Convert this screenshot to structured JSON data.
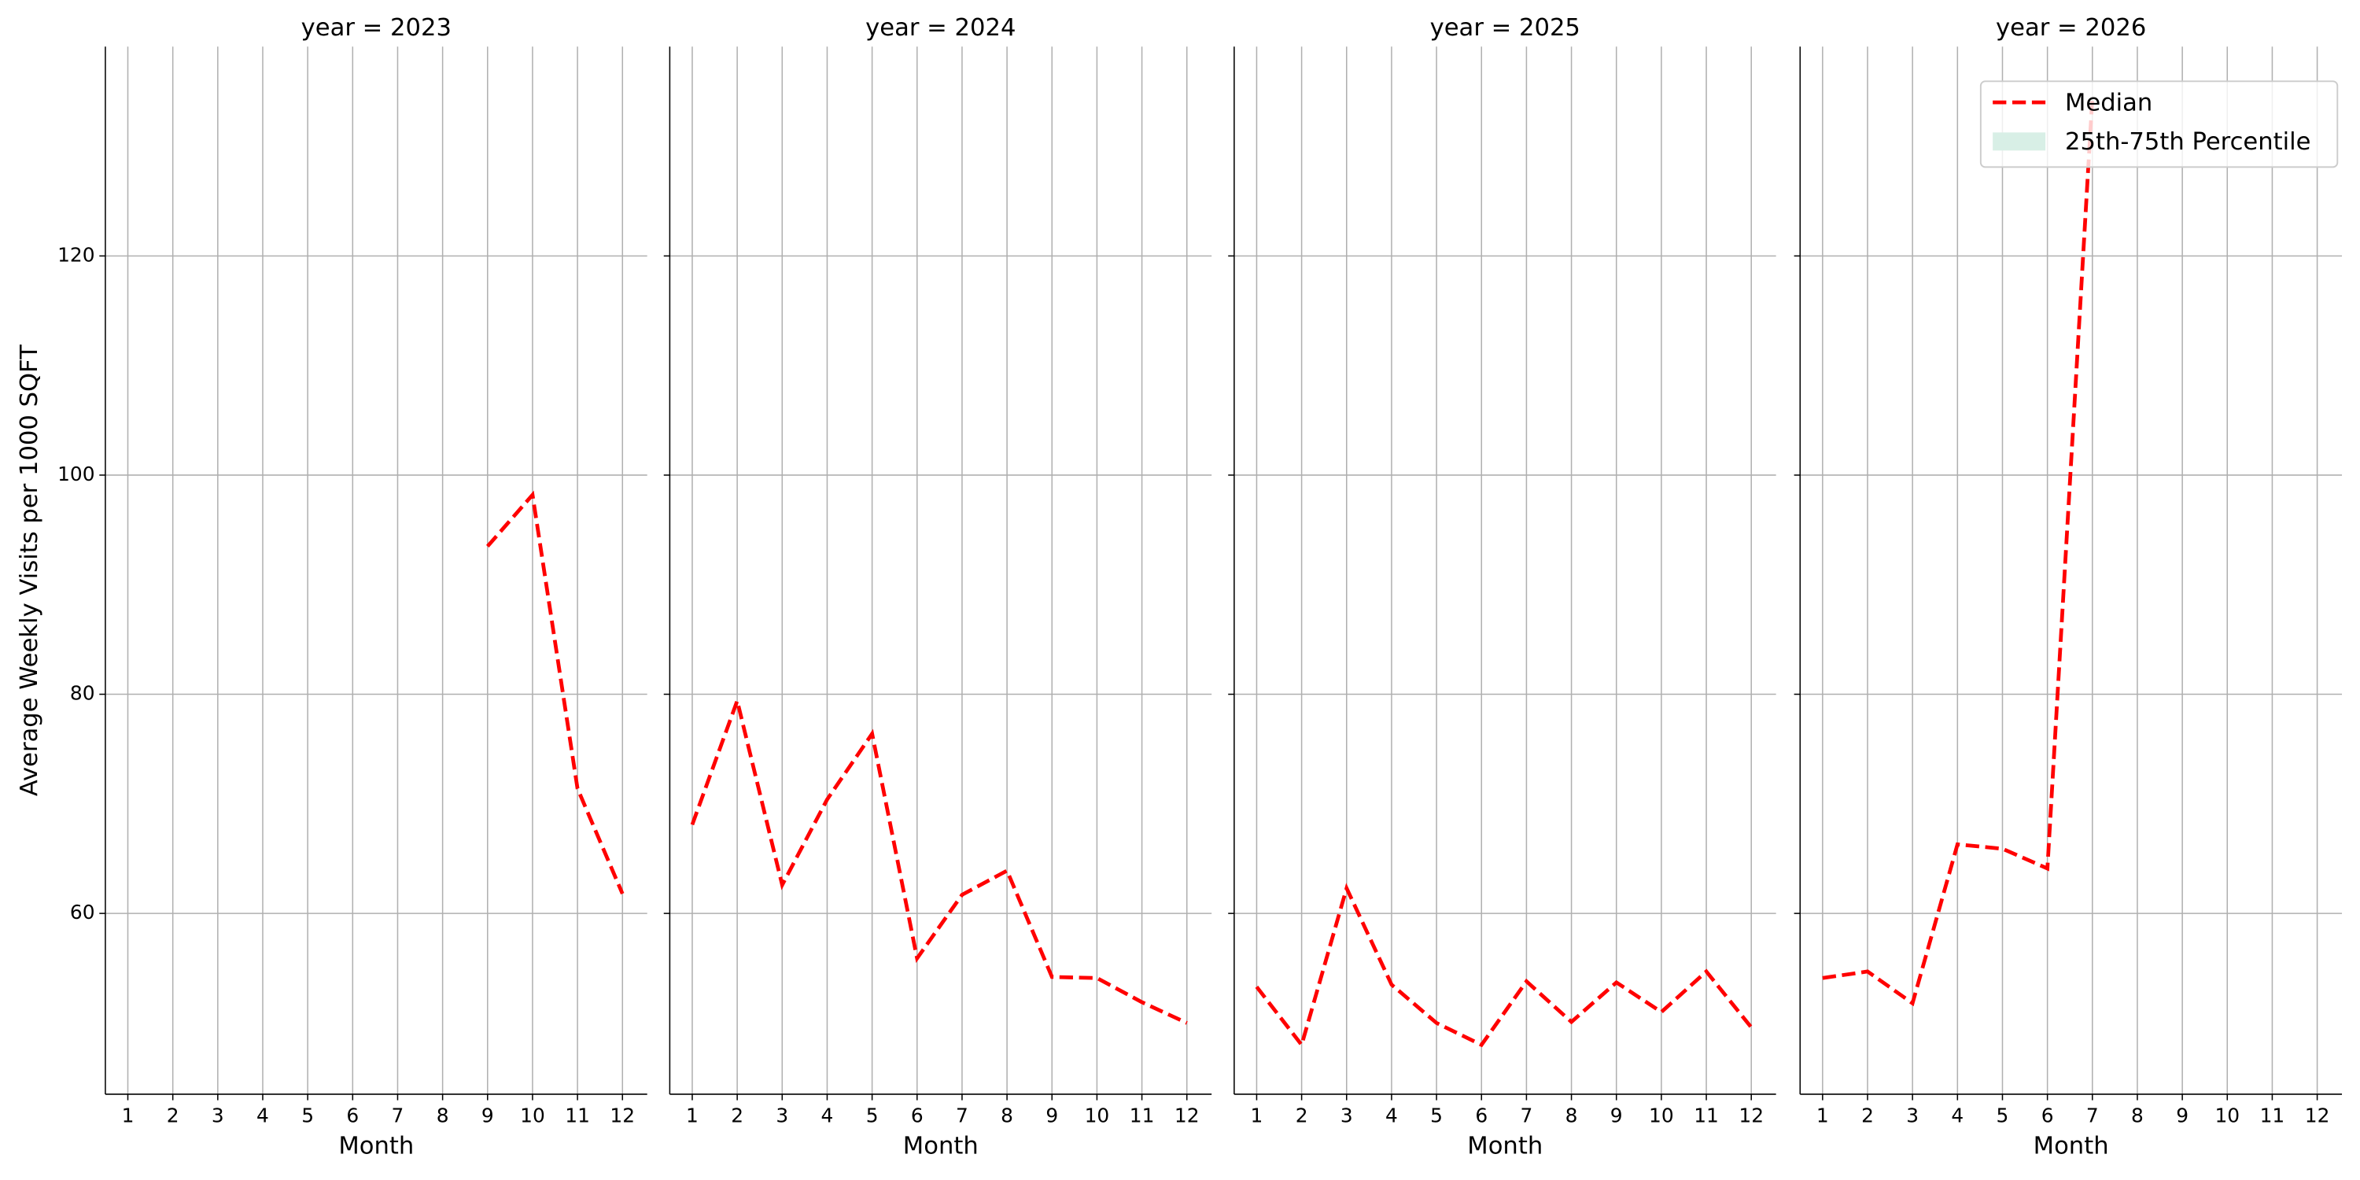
{
  "chart_data": [
    {
      "type": "line",
      "title": "year = 2023",
      "x_label": "Month",
      "y_label": "Average Weekly Visits per 1000 SQFT",
      "x": [
        1,
        2,
        3,
        4,
        5,
        6,
        7,
        8,
        9,
        10,
        11,
        12
      ],
      "series": [
        {
          "color": "#ff0000",
          "values": [
            null,
            null,
            null,
            null,
            null,
            null,
            null,
            null,
            93.5,
            98.2,
            71.4,
            61.8
          ]
        }
      ],
      "xlim": [
        0.5,
        12.55
      ],
      "xticks": [
        1,
        2,
        3,
        4,
        5,
        6,
        7,
        8,
        9,
        10,
        11,
        12
      ],
      "ylim": [
        43.5,
        139.1
      ],
      "yticks": [
        60,
        80,
        100,
        120
      ],
      "grid": true
    },
    {
      "type": "line",
      "title": "year = 2024",
      "x_label": "Month",
      "x": [
        1,
        2,
        3,
        4,
        5,
        6,
        7,
        8,
        9,
        10,
        11,
        12
      ],
      "series": [
        {
          "color": "#ff0000",
          "values": [
            68.1,
            79.4,
            62.6,
            70.4,
            76.4,
            55.9,
            61.7,
            63.9,
            54.2,
            54.1,
            51.9,
            50.0
          ]
        }
      ],
      "xlim": [
        0.5,
        12.55
      ],
      "xticks": [
        1,
        2,
        3,
        4,
        5,
        6,
        7,
        8,
        9,
        10,
        11,
        12
      ],
      "ylim": [
        43.5,
        139.1
      ],
      "yticks": [
        60,
        80,
        100,
        120
      ],
      "grid": true
    },
    {
      "type": "line",
      "title": "year = 2025",
      "x_label": "Month",
      "x": [
        1,
        2,
        3,
        4,
        5,
        6,
        7,
        8,
        9,
        10,
        11,
        12
      ],
      "series": [
        {
          "color": "#ff0000",
          "values": [
            53.3,
            48.0,
            62.3,
            53.5,
            50.0,
            48.0,
            53.8,
            50.1,
            53.7,
            51.0,
            54.7,
            49.6
          ]
        }
      ],
      "xlim": [
        0.5,
        12.55
      ],
      "xticks": [
        1,
        2,
        3,
        4,
        5,
        6,
        7,
        8,
        9,
        10,
        11,
        12
      ],
      "ylim": [
        43.5,
        139.1
      ],
      "yticks": [
        60,
        80,
        100,
        120
      ],
      "grid": true
    },
    {
      "type": "line",
      "title": "year = 2026",
      "x_label": "Month",
      "x": [
        1,
        2,
        3,
        4,
        5,
        6,
        7,
        8,
        9,
        10,
        11,
        12
      ],
      "series": [
        {
          "name": "Median",
          "color": "#ff0000",
          "values": [
            54.1,
            54.7,
            51.8,
            66.3,
            65.9,
            64.1,
            134.5,
            null,
            null,
            null,
            null,
            null
          ]
        }
      ],
      "band": {
        "name": "25th-75th Percentile",
        "color": "#d8efe6"
      },
      "legend": "upper right",
      "xlim": [
        0.5,
        12.55
      ],
      "xticks": [
        1,
        2,
        3,
        4,
        5,
        6,
        7,
        8,
        9,
        10,
        11,
        12
      ],
      "ylim": [
        43.5,
        139.1
      ],
      "yticks": [
        60,
        80,
        100,
        120
      ],
      "grid": true
    }
  ]
}
